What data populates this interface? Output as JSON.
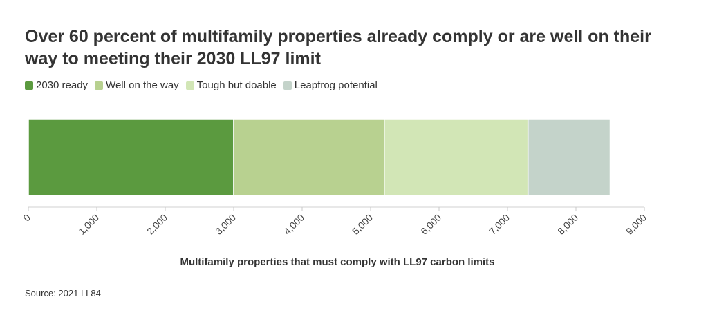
{
  "title": "Over 60 percent of multifamily properties already comply or are well on their way to meeting their 2030 LL97 limit",
  "source": "Source: 2021 LL84",
  "chart_data": {
    "type": "bar",
    "orientation": "horizontal",
    "stacked": true,
    "xlabel": "Multifamily properties that must comply with LL97 carbon limits",
    "xlim": [
      0,
      9000
    ],
    "ticks": [
      "0",
      "1,000",
      "2,000",
      "3,000",
      "4,000",
      "5,000",
      "6,000",
      "7,000",
      "8,000",
      "9,000"
    ],
    "tick_values": [
      0,
      1000,
      2000,
      3000,
      4000,
      5000,
      6000,
      7000,
      8000,
      9000
    ],
    "legend_position": "top-left",
    "grid": false,
    "series": [
      {
        "name": "2030 ready",
        "value": 3000,
        "color": "#5b9a3f"
      },
      {
        "name": "Well on the way",
        "value": 2200,
        "color": "#b8d190"
      },
      {
        "name": "Tough but doable",
        "value": 2100,
        "color": "#d2e6b6"
      },
      {
        "name": "Leapfrog potential",
        "value": 1200,
        "color": "#c4d3ca"
      }
    ]
  }
}
